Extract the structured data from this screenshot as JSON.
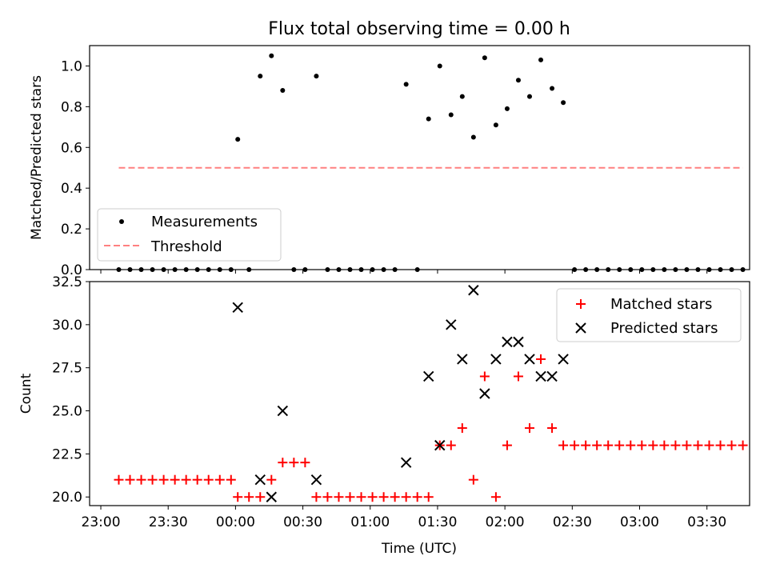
{
  "title": "Flux total observing time = 0.00 h",
  "chart_data": [
    {
      "type": "scatter",
      "ylabel": "Matched/Predicted stars",
      "xlim": [
        -65,
        229
      ],
      "ylim": [
        0,
        1.1
      ],
      "yticks": [
        0.0,
        0.2,
        0.4,
        0.6,
        0.8,
        1.0
      ],
      "ytick_labels": [
        "0.0",
        "0.2",
        "0.4",
        "0.6",
        "0.8",
        "1.0"
      ],
      "legend": {
        "position": "lower-left",
        "entries": [
          "Measurements",
          "Threshold"
        ]
      },
      "colors": {
        "measurements": "#000000",
        "threshold": "#ff8080"
      },
      "series": [
        {
          "name": "Measurements",
          "marker": "dot",
          "x": [
            -52,
            -47,
            -42,
            -37,
            -32,
            -27,
            -22,
            -17,
            -12,
            -7,
            -2,
            1,
            6,
            11,
            16,
            21,
            26,
            31,
            36,
            41,
            46,
            51,
            56,
            61,
            66,
            71,
            76,
            81,
            86,
            91,
            96,
            101,
            106,
            111,
            116,
            121,
            126,
            131,
            136,
            141,
            146,
            151,
            156,
            161,
            166,
            171,
            176,
            181,
            186,
            191,
            196,
            201,
            206,
            211,
            216,
            221,
            226
          ],
          "y": [
            0,
            0,
            0,
            0,
            0,
            0,
            0,
            0,
            0,
            0,
            0,
            0.64,
            0,
            0.95,
            1.05,
            0.88,
            0,
            0,
            0.95,
            0,
            0,
            0,
            0,
            0,
            0,
            0,
            0.91,
            0,
            0.74,
            1.0,
            0.76,
            0.85,
            0.65,
            1.04,
            0.71,
            0.79,
            0.93,
            0.85,
            1.03,
            0.89,
            0.82,
            0,
            0,
            0,
            0,
            0,
            0,
            0,
            0,
            0,
            0,
            0,
            0,
            0,
            0,
            0,
            0
          ]
        },
        {
          "name": "Threshold",
          "style": "dashed",
          "x": [
            -52,
            226
          ],
          "y": [
            0.5,
            0.5
          ]
        }
      ]
    },
    {
      "type": "scatter",
      "xlabel": "Time (UTC)",
      "ylabel": "Count",
      "xlim": [
        -65,
        229
      ],
      "ylim": [
        19.5,
        32.5
      ],
      "yticks": [
        20.0,
        22.5,
        25.0,
        27.5,
        30.0,
        32.5
      ],
      "ytick_labels": [
        "20.0",
        "22.5",
        "25.0",
        "27.5",
        "30.0",
        "32.5"
      ],
      "xticks": [
        -60,
        -30,
        0,
        30,
        60,
        90,
        120,
        150,
        180,
        210
      ],
      "xtick_labels": [
        "23:00",
        "23:30",
        "00:00",
        "00:30",
        "01:00",
        "01:30",
        "02:00",
        "02:30",
        "03:00",
        "03:30"
      ],
      "legend": {
        "position": "top-right",
        "entries": [
          "Matched stars",
          "Predicted stars"
        ]
      },
      "colors": {
        "matched": "#ff0000",
        "predicted": "#000000"
      },
      "series": [
        {
          "name": "Matched stars",
          "marker": "plus",
          "x": [
            -52,
            -47,
            -42,
            -37,
            -32,
            -27,
            -22,
            -17,
            -12,
            -7,
            -2,
            1,
            6,
            11,
            16,
            21,
            26,
            31,
            36,
            41,
            46,
            51,
            56,
            61,
            66,
            71,
            76,
            81,
            86,
            91,
            96,
            101,
            106,
            111,
            116,
            121,
            126,
            131,
            136,
            141,
            146,
            151,
            156,
            161,
            166,
            171,
            176,
            181,
            186,
            191,
            196,
            201,
            206,
            211,
            216,
            221,
            226
          ],
          "y": [
            21,
            21,
            21,
            21,
            21,
            21,
            21,
            21,
            21,
            21,
            21,
            20,
            20,
            20,
            21,
            22,
            22,
            22,
            20,
            20,
            20,
            20,
            20,
            20,
            20,
            20,
            20,
            20,
            20,
            23,
            23,
            24,
            21,
            27,
            20,
            23,
            27,
            24,
            28,
            24,
            23,
            23,
            23,
            23,
            23,
            23,
            23,
            23,
            23,
            23,
            23,
            23,
            23,
            23,
            23,
            23,
            23
          ]
        },
        {
          "name": "Predicted stars",
          "marker": "x",
          "x": [
            1,
            11,
            16,
            21,
            36,
            76,
            86,
            91,
            96,
            101,
            106,
            111,
            116,
            121,
            126,
            131,
            136,
            141,
            146
          ],
          "y": [
            31,
            21,
            20,
            25,
            21,
            22,
            27,
            23,
            30,
            28,
            32,
            26,
            28,
            29,
            29,
            28,
            27,
            27,
            28
          ]
        }
      ]
    }
  ]
}
